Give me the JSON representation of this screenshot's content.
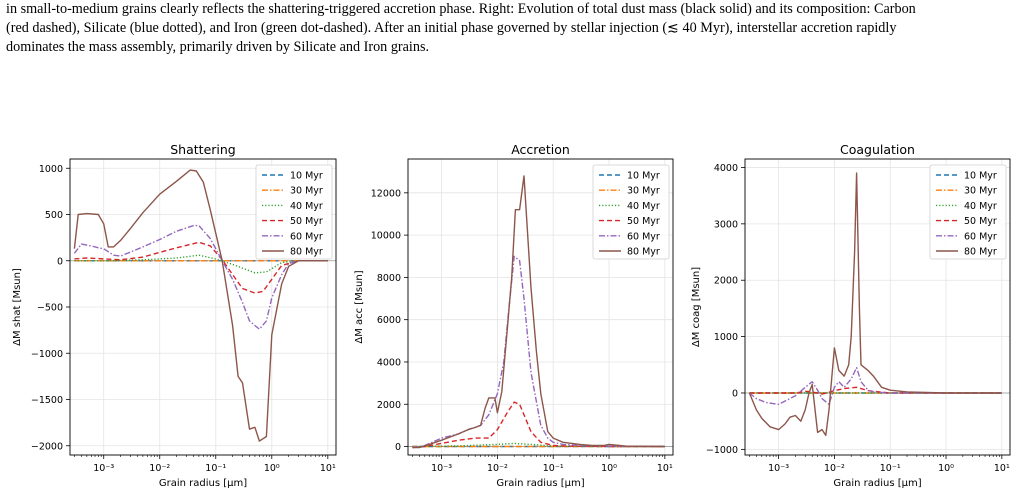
{
  "caption": {
    "line1": "in small-to-medium grains clearly reflects the shattering-triggered accretion phase. Right: Evolution of total dust mass (black solid) and its composition: Carbon",
    "line2": "(red dashed), Silicate (blue dotted), and Iron (green dot-dashed). After an initial phase governed by stellar injection (≲ 40 Myr), interstellar accretion rapidly",
    "line3": "dominates the mass assembly, primarily driven by Silicate and Iron grains."
  },
  "colors": {
    "10 Myr": "#1f77b4",
    "30 Myr": "#ff7f0e",
    "40 Myr": "#2ca02c",
    "50 Myr": "#d62728",
    "60 Myr": "#9467bd",
    "80 Myr": "#8c564b"
  },
  "chart_data": [
    {
      "type": "line",
      "title": "Shattering",
      "xlabel": "Grain radius [μm]",
      "ylabel": "ΔM shat [Msun]",
      "xscale": "log",
      "xlim": [
        0.00025,
        14
      ],
      "ylim": [
        -2100,
        1100
      ],
      "yticks": [
        1000,
        500,
        0,
        -500,
        -1000,
        -1500,
        -2000
      ],
      "ytick_labels": [
        "1000",
        "500",
        "0",
        "−500",
        "−1000",
        "−1500",
        "−2000"
      ],
      "xtick_labels": [
        "10⁻³",
        "10⁻²",
        "10⁻¹",
        "10⁰",
        "10¹"
      ],
      "grid": true,
      "legend": "top-right",
      "series": [
        {
          "name": "10 Myr",
          "style": "dashed",
          "x": [
            0.0003,
            0.01,
            0.1,
            1,
            10
          ],
          "y": [
            0,
            0,
            0,
            0,
            0
          ]
        },
        {
          "name": "30 Myr",
          "style": "dashdot",
          "x": [
            0.0003,
            0.01,
            0.1,
            1,
            10
          ],
          "y": [
            0,
            0,
            0,
            0,
            0
          ]
        },
        {
          "name": "40 Myr",
          "style": "dotted",
          "x": [
            0.0003,
            0.001,
            0.005,
            0.02,
            0.05,
            0.1,
            0.2,
            0.5,
            0.8,
            1.5,
            3,
            10
          ],
          "y": [
            0,
            0,
            10,
            30,
            60,
            20,
            -40,
            -130,
            -120,
            -20,
            0,
            0
          ]
        },
        {
          "name": "50 Myr",
          "style": "dashed",
          "x": [
            0.0003,
            0.0005,
            0.001,
            0.002,
            0.005,
            0.01,
            0.02,
            0.05,
            0.08,
            0.13,
            0.2,
            0.3,
            0.5,
            0.7,
            1.0,
            1.5,
            3,
            10
          ],
          "y": [
            20,
            30,
            20,
            10,
            40,
            90,
            140,
            200,
            160,
            10,
            -150,
            -300,
            -350,
            -330,
            -200,
            -50,
            0,
            0
          ]
        },
        {
          "name": "60 Myr",
          "style": "dashdot",
          "x": [
            0.0003,
            0.0004,
            0.0006,
            0.0008,
            0.001,
            0.0015,
            0.002,
            0.005,
            0.01,
            0.02,
            0.04,
            0.05,
            0.08,
            0.13,
            0.2,
            0.3,
            0.4,
            0.5,
            0.6,
            0.8,
            1.0,
            1.5,
            2,
            3,
            10
          ],
          "y": [
            80,
            180,
            160,
            140,
            130,
            60,
            50,
            150,
            230,
            320,
            380,
            380,
            240,
            0,
            -200,
            -450,
            -650,
            -700,
            -740,
            -650,
            -400,
            -150,
            -30,
            0,
            0
          ]
        },
        {
          "name": "80 Myr",
          "style": "solid",
          "x": [
            0.0003,
            0.00035,
            0.0005,
            0.0008,
            0.001,
            0.0012,
            0.0015,
            0.002,
            0.003,
            0.005,
            0.01,
            0.02,
            0.035,
            0.045,
            0.06,
            0.08,
            0.13,
            0.2,
            0.25,
            0.3,
            0.4,
            0.5,
            0.6,
            0.8,
            1.0,
            1.5,
            2,
            3,
            10
          ],
          "y": [
            130,
            500,
            510,
            500,
            400,
            150,
            150,
            220,
            350,
            520,
            720,
            860,
            980,
            970,
            850,
            550,
            0,
            -700,
            -1250,
            -1320,
            -1820,
            -1800,
            -1950,
            -1900,
            -800,
            -250,
            -60,
            0,
            0
          ]
        }
      ]
    },
    {
      "type": "line",
      "title": "Accretion",
      "xlabel": "Grain radius [μm]",
      "ylabel": "ΔM acc [Msun]",
      "xscale": "log",
      "xlim": [
        0.00025,
        14
      ],
      "ylim": [
        -400,
        13600
      ],
      "yticks": [
        0,
        2000,
        4000,
        6000,
        8000,
        10000,
        12000
      ],
      "ytick_labels": [
        "0",
        "2000",
        "4000",
        "6000",
        "8000",
        "10000",
        "12000"
      ],
      "xtick_labels": [
        "10⁻³",
        "10⁻²",
        "10⁻¹",
        "10⁰",
        "10¹"
      ],
      "grid": true,
      "legend": "top-right",
      "series": [
        {
          "name": "10 Myr",
          "style": "dashed",
          "x": [
            0.0003,
            0.01,
            0.1,
            1,
            10
          ],
          "y": [
            0,
            0,
            0,
            0,
            0
          ]
        },
        {
          "name": "30 Myr",
          "style": "dashdot",
          "x": [
            0.0003,
            0.01,
            0.1,
            1,
            10
          ],
          "y": [
            0,
            0,
            0,
            0,
            0
          ]
        },
        {
          "name": "40 Myr",
          "style": "dotted",
          "x": [
            0.0003,
            0.002,
            0.01,
            0.02,
            0.04,
            0.1,
            1,
            10
          ],
          "y": [
            0,
            30,
            100,
            150,
            100,
            20,
            0,
            0
          ]
        },
        {
          "name": "50 Myr",
          "style": "dashed",
          "x": [
            0.0003,
            0.0005,
            0.001,
            0.002,
            0.004,
            0.007,
            0.01,
            0.015,
            0.02,
            0.025,
            0.03,
            0.04,
            0.06,
            0.1,
            0.2,
            1,
            10
          ],
          "y": [
            -50,
            0,
            150,
            300,
            400,
            400,
            800,
            1600,
            2100,
            2000,
            1500,
            700,
            200,
            50,
            20,
            0,
            0
          ]
        },
        {
          "name": "60 Myr",
          "style": "dashdot",
          "x": [
            0.0003,
            0.0005,
            0.001,
            0.002,
            0.003,
            0.005,
            0.007,
            0.01,
            0.013,
            0.016,
            0.02,
            0.025,
            0.03,
            0.04,
            0.06,
            0.08,
            0.1,
            0.15,
            0.3,
            1,
            10
          ],
          "y": [
            -50,
            50,
            400,
            600,
            800,
            1000,
            1500,
            2500,
            4000,
            6500,
            9000,
            8800,
            7000,
            3500,
            1000,
            400,
            200,
            100,
            50,
            20,
            0
          ]
        },
        {
          "name": "80 Myr",
          "style": "solid",
          "x": [
            0.0003,
            0.0004,
            0.0006,
            0.001,
            0.002,
            0.003,
            0.004,
            0.005,
            0.006,
            0.007,
            0.008,
            0.009,
            0.01,
            0.012,
            0.015,
            0.018,
            0.021,
            0.025,
            0.03,
            0.04,
            0.05,
            0.06,
            0.08,
            0.1,
            0.15,
            0.3,
            0.5,
            0.8,
            1,
            2,
            10
          ],
          "y": [
            -50,
            -50,
            100,
            300,
            600,
            800,
            900,
            1000,
            1800,
            2300,
            2300,
            2300,
            1600,
            2600,
            5500,
            8000,
            11200,
            11200,
            12800,
            7500,
            4500,
            2500,
            700,
            400,
            200,
            100,
            50,
            50,
            100,
            20,
            0
          ]
        }
      ]
    },
    {
      "type": "line",
      "title": "Coagulation",
      "xlabel": "Grain radius [μm]",
      "ylabel": "ΔM coag [Msun]",
      "xscale": "log",
      "xlim": [
        0.00025,
        14
      ],
      "ylim": [
        -1100,
        4150
      ],
      "yticks": [
        4000,
        3000,
        2000,
        1000,
        0,
        -1000
      ],
      "ytick_labels": [
        "4000",
        "3000",
        "2000",
        "1000",
        "0",
        "−1000"
      ],
      "xtick_labels": [
        "10⁻³",
        "10⁻²",
        "10⁻¹",
        "10⁰",
        "10¹"
      ],
      "grid": true,
      "legend": "top-right",
      "series": [
        {
          "name": "10 Myr",
          "style": "dashed",
          "x": [
            0.0003,
            0.01,
            0.1,
            1,
            10
          ],
          "y": [
            0,
            0,
            0,
            0,
            0
          ]
        },
        {
          "name": "30 Myr",
          "style": "dashdot",
          "x": [
            0.0003,
            0.01,
            0.1,
            1,
            10
          ],
          "y": [
            0,
            0,
            0,
            0,
            0
          ]
        },
        {
          "name": "40 Myr",
          "style": "dotted",
          "x": [
            0.0003,
            0.01,
            0.1,
            1,
            10
          ],
          "y": [
            0,
            0,
            0,
            0,
            0
          ]
        },
        {
          "name": "50 Myr",
          "style": "dashed",
          "x": [
            0.0003,
            0.002,
            0.003,
            0.004,
            0.006,
            0.01,
            0.015,
            0.025,
            0.04,
            0.1,
            10
          ],
          "y": [
            0,
            0,
            30,
            20,
            -20,
            40,
            80,
            100,
            40,
            0,
            0
          ]
        },
        {
          "name": "60 Myr",
          "style": "dashdot",
          "x": [
            0.0003,
            0.0004,
            0.0006,
            0.001,
            0.002,
            0.003,
            0.004,
            0.005,
            0.006,
            0.008,
            0.01,
            0.012,
            0.015,
            0.02,
            0.025,
            0.03,
            0.04,
            0.05,
            0.1,
            1,
            10
          ],
          "y": [
            0,
            -100,
            -170,
            -200,
            -50,
            100,
            200,
            50,
            -100,
            -200,
            100,
            200,
            100,
            250,
            450,
            200,
            50,
            20,
            0,
            0,
            0
          ]
        },
        {
          "name": "80 Myr",
          "style": "solid",
          "x": [
            0.0003,
            0.0004,
            0.0005,
            0.0007,
            0.001,
            0.0013,
            0.0016,
            0.002,
            0.0025,
            0.003,
            0.0035,
            0.004,
            0.005,
            0.006,
            0.007,
            0.008,
            0.009,
            0.01,
            0.012,
            0.015,
            0.018,
            0.02,
            0.023,
            0.025,
            0.028,
            0.03,
            0.04,
            0.05,
            0.07,
            0.1,
            0.2,
            1,
            10
          ],
          "y": [
            0,
            -300,
            -450,
            -600,
            -650,
            -550,
            -430,
            -400,
            -500,
            -300,
            0,
            150,
            -700,
            -650,
            -750,
            -300,
            300,
            800,
            400,
            300,
            500,
            1000,
            2500,
            3900,
            1500,
            500,
            400,
            300,
            100,
            50,
            20,
            0,
            0
          ]
        }
      ]
    }
  ]
}
